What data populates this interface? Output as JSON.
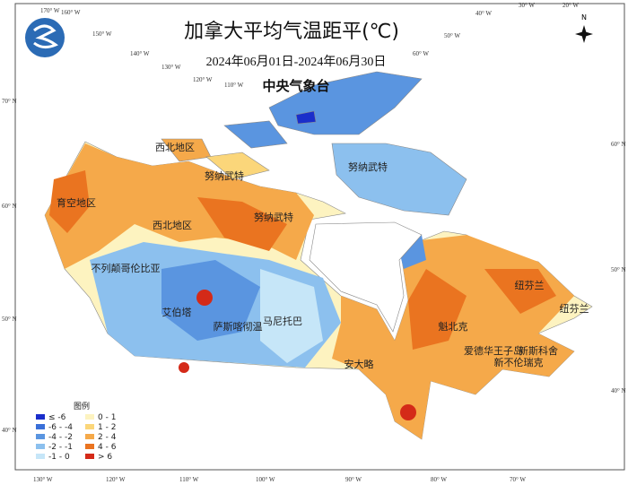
{
  "header": {
    "title": "加拿大平均气温距平(℃)",
    "date_range": "2024年06月01日-2024年06月30日",
    "agency": "中央气象台"
  },
  "legend": {
    "title": "图例",
    "items": [
      {
        "label": "≤ -6",
        "color": "#1a2ecb"
      },
      {
        "label": "-6 - -4",
        "color": "#3a6fd8"
      },
      {
        "label": "-4 - -2",
        "color": "#5a95e0"
      },
      {
        "label": "-2 - -1",
        "color": "#8cc0ee"
      },
      {
        "label": "-1 - 0",
        "color": "#c6e6f8"
      },
      {
        "label": "0 - 1",
        "color": "#fdf3c0"
      },
      {
        "label": "1 - 2",
        "color": "#fbd67a"
      },
      {
        "label": "2 - 4",
        "color": "#f5a94a"
      },
      {
        "label": "4 - 6",
        "color": "#ea7420"
      },
      {
        "label": "> 6",
        "color": "#d42a18"
      }
    ]
  },
  "regions": [
    "育空地区",
    "西北地区",
    "西北地区",
    "努纳武特",
    "努纳武特",
    "努纳武特",
    "不列颠哥伦比亚",
    "艾伯塔",
    "萨斯喀彻温",
    "马尼托巴",
    "安大略",
    "魁北克",
    "纽芬兰",
    "纽芬兰",
    "新斯科舍",
    "新不伦瑞克",
    "爱德华王子岛"
  ],
  "graticule": {
    "top": [
      "170° W",
      "160° W",
      "150° W",
      "140° W",
      "130° W",
      "120° W",
      "110° W",
      "60° W",
      "50° W",
      "40° W",
      "30° W",
      "20° W"
    ],
    "bottom": [
      "130° W",
      "120° W",
      "110° W",
      "100° W",
      "90° W",
      "80° W",
      "70° W"
    ],
    "left": [
      "70° N",
      "60° N",
      "50° N",
      "40° N"
    ],
    "right": [
      "60° N",
      "50° N",
      "40° N"
    ]
  },
  "compass": "N"
}
